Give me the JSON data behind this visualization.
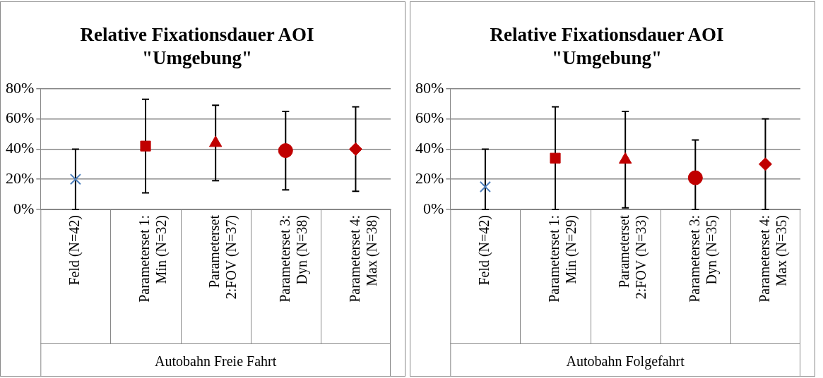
{
  "chart_data": [
    {
      "type": "scatter",
      "title": "Relative Fixationsdauer AOI \"Umgebung\"",
      "xlabel": "Autobahn Freie Fahrt",
      "categories": [
        "Feld (N=42)",
        "Parameterset 1: Min (N=32)",
        "Parameterset 2:FOV (N=37)",
        "Parameterset 3: Dyn (N=38)",
        "Parameterset 4: Max (N=38)"
      ],
      "ylim": [
        0,
        80
      ],
      "yticks": [
        {
          "value": 0,
          "label": "0%"
        },
        {
          "value": 20,
          "label": "20%"
        },
        {
          "value": 40,
          "label": "40%"
        },
        {
          "value": 60,
          "label": "60%"
        },
        {
          "value": 80,
          "label": "80%"
        }
      ],
      "grid": "y",
      "legend": false,
      "series": [
        {
          "color": "#4f81bd",
          "marker": "cross",
          "values": [
            20,
            null,
            null,
            null,
            null
          ],
          "errors": [
            20,
            null,
            null,
            null,
            null
          ]
        },
        {
          "color": "#c00000",
          "marker": "square",
          "values": [
            null,
            42,
            null,
            null,
            null
          ],
          "errors": [
            null,
            31,
            null,
            null,
            null
          ]
        },
        {
          "color": "#c00000",
          "marker": "triangle",
          "values": [
            null,
            null,
            44,
            null,
            null
          ],
          "errors": [
            null,
            null,
            25,
            null,
            null
          ]
        },
        {
          "color": "#c00000",
          "marker": "circle",
          "values": [
            null,
            null,
            null,
            39,
            null
          ],
          "errors": [
            null,
            null,
            null,
            26,
            null
          ]
        },
        {
          "color": "#c00000",
          "marker": "diamond",
          "values": [
            null,
            null,
            null,
            null,
            40
          ],
          "errors": [
            null,
            null,
            null,
            null,
            28
          ]
        }
      ]
    },
    {
      "type": "scatter",
      "title": "Relative Fixationsdauer AOI \"Umgebung\"",
      "xlabel": "Autobahn Folgefahrt",
      "categories": [
        "Feld (N=42)",
        "Parameterset 1: Min (N=29)",
        "Parameterset 2:FOV (N=33)",
        "Parameterset 3: Dyn (N=35)",
        "Parameterset 4: Max (N=35)"
      ],
      "ylim": [
        0,
        80
      ],
      "yticks": [
        {
          "value": 0,
          "label": "0%"
        },
        {
          "value": 20,
          "label": "20%"
        },
        {
          "value": 40,
          "label": "40%"
        },
        {
          "value": 60,
          "label": "60%"
        },
        {
          "value": 80,
          "label": "80%"
        }
      ],
      "grid": "y",
      "legend": false,
      "series": [
        {
          "color": "#4f81bd",
          "marker": "cross",
          "values": [
            15,
            null,
            null,
            null,
            null
          ],
          "errors": [
            [
              0,
              40
            ],
            null,
            null,
            null,
            null
          ]
        },
        {
          "color": "#c00000",
          "marker": "square",
          "values": [
            null,
            34,
            null,
            null,
            null
          ],
          "errors": [
            null,
            34,
            null,
            null,
            null
          ]
        },
        {
          "color": "#c00000",
          "marker": "triangle",
          "values": [
            null,
            null,
            33,
            null,
            null
          ],
          "errors": [
            null,
            null,
            32,
            null,
            null
          ]
        },
        {
          "color": "#c00000",
          "marker": "circle",
          "values": [
            null,
            null,
            null,
            21,
            null
          ],
          "errors": [
            null,
            null,
            null,
            [
              0,
              46
            ],
            null
          ]
        },
        {
          "color": "#c00000",
          "marker": "diamond",
          "values": [
            null,
            null,
            null,
            null,
            30
          ],
          "errors": [
            null,
            null,
            null,
            null,
            30
          ]
        }
      ]
    }
  ]
}
